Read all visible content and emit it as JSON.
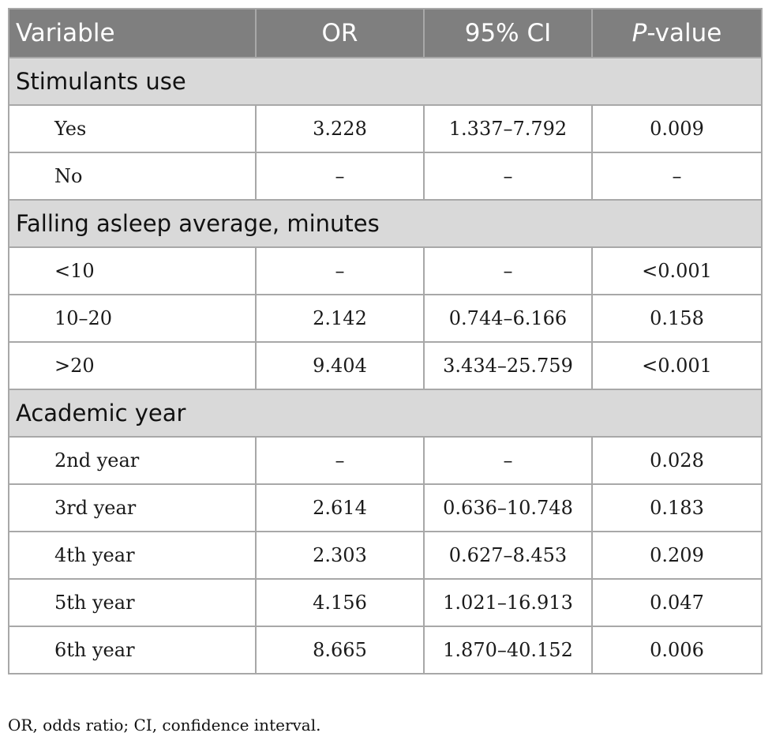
{
  "header": {
    "variable": "Variable",
    "or": "OR",
    "ci": "95% CI",
    "p_prefix": "P",
    "p_suffix": "-value"
  },
  "sections": [
    {
      "title": "Stimulants use",
      "rows": [
        {
          "label": "Yes",
          "or": "3.228",
          "ci": "1.337–7.792",
          "p": "0.009"
        },
        {
          "label": "No",
          "or": "–",
          "ci": "–",
          "p": "–"
        }
      ]
    },
    {
      "title": "Falling asleep average, minutes",
      "rows": [
        {
          "label": "<10",
          "or": "–",
          "ci": "–",
          "p": "<0.001"
        },
        {
          "label": "10–20",
          "or": "2.142",
          "ci": "0.744–6.166",
          "p": "0.158"
        },
        {
          "label": ">20",
          "or": "9.404",
          "ci": "3.434–25.759",
          "p": "<0.001"
        }
      ]
    },
    {
      "title": "Academic year",
      "rows": [
        {
          "label": "2nd year",
          "or": "–",
          "ci": "–",
          "p": "0.028"
        },
        {
          "label": "3rd year",
          "or": "2.614",
          "ci": "0.636–10.748",
          "p": "0.183"
        },
        {
          "label": "4th year",
          "or": "2.303",
          "ci": "0.627–8.453",
          "p": "0.209"
        },
        {
          "label": "5th year",
          "or": "4.156",
          "ci": "1.021–16.913",
          "p": "0.047"
        },
        {
          "label": "6th year",
          "or": "8.665",
          "ci": "1.870–40.152",
          "p": "0.006"
        }
      ]
    }
  ],
  "footnote": "OR, odds ratio; CI, confidence interval.",
  "colors": {
    "header_bg": "#7f7f7f",
    "section_bg": "#d9d9d9",
    "border": "#a8a8a8"
  }
}
